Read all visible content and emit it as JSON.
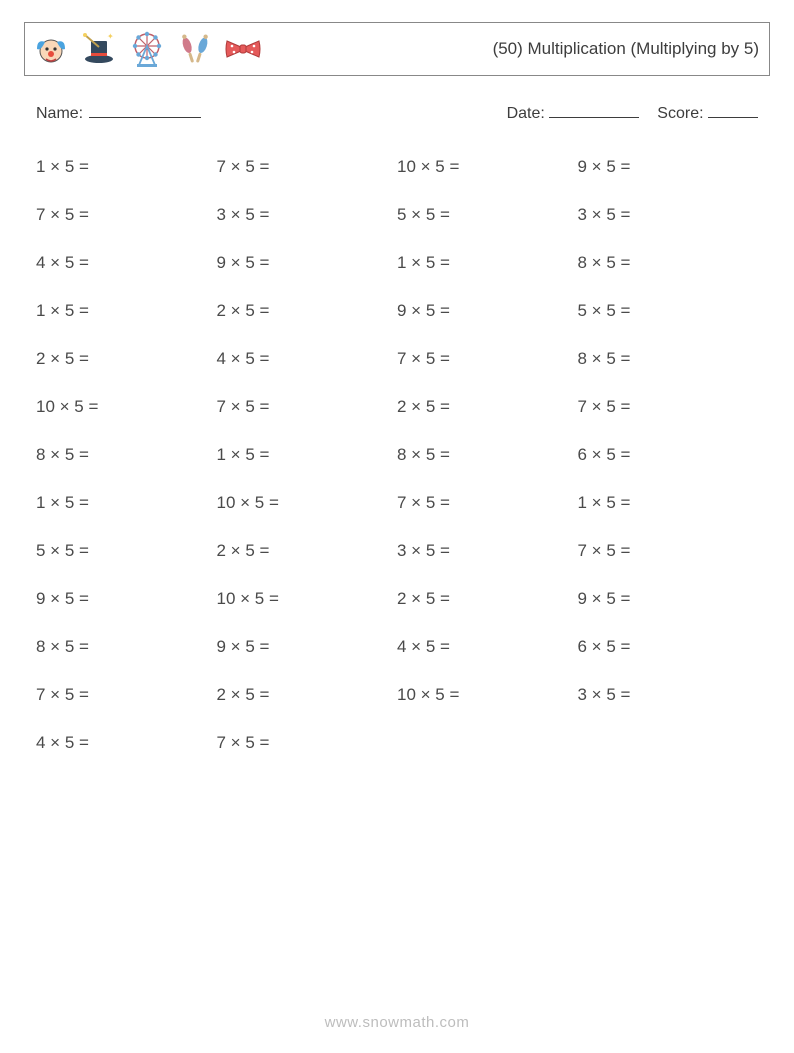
{
  "header": {
    "title": "(50) Multiplication (Multiplying by 5)",
    "icons": [
      "clown-icon",
      "magic-hat-icon",
      "ferris-wheel-icon",
      "juggling-pins-icon",
      "bowtie-icon"
    ]
  },
  "info": {
    "name_label": "Name:",
    "date_label": "Date:",
    "score_label": "Score:"
  },
  "worksheet": {
    "columns": 4,
    "problem_fontsize": 17,
    "text_color": "#4a4a4a",
    "row_gap": 28,
    "operator": "×",
    "equals": "=",
    "multiplicand": 5,
    "multipliers": [
      1,
      7,
      10,
      9,
      7,
      3,
      5,
      3,
      4,
      9,
      1,
      8,
      1,
      2,
      9,
      5,
      2,
      4,
      7,
      8,
      10,
      7,
      2,
      7,
      8,
      1,
      8,
      6,
      1,
      10,
      7,
      1,
      5,
      2,
      3,
      7,
      9,
      10,
      2,
      9,
      8,
      9,
      4,
      6,
      7,
      2,
      10,
      3,
      4,
      7
    ]
  },
  "footer": {
    "text": "www.snowmath.com",
    "color": "#bdbdbd",
    "fontsize": 15
  },
  "icon_colors": {
    "clown_face": "#f9d7b8",
    "clown_nose": "#e74c3c",
    "clown_hair": "#4aa3df",
    "hat": "#34495e",
    "wand": "#c0a050",
    "wheel_frame": "#c0606a",
    "wheel_cab": "#6aa8d8",
    "wheel_base": "#6aa8d8",
    "pin_a": "#d07a8a",
    "pin_b": "#6aa8d8",
    "bow": "#e55a5a",
    "bow_dot": "#ffffff"
  }
}
